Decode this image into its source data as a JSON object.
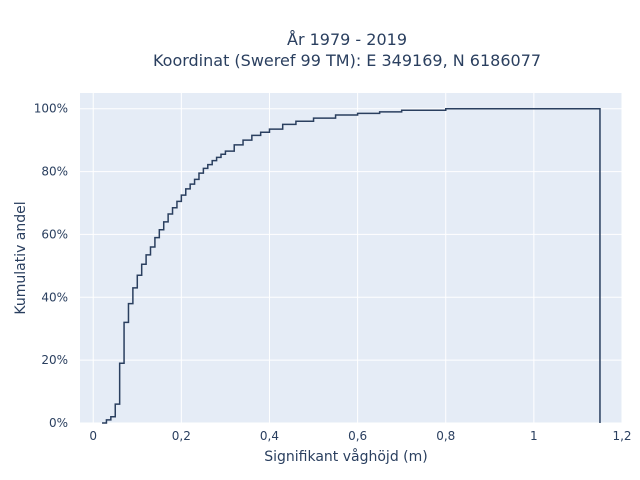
{
  "chart_data": {
    "type": "line",
    "step": true,
    "title_line1": "År 1979 - 2019",
    "title_line2": "Koordinat (Sweref 99 TM): E 349169, N 6186077",
    "xlabel": "Signifikant våghöjd (m)",
    "ylabel": "Kumulativ andel",
    "xlim": [
      -0.03,
      1.2
    ],
    "ylim": [
      0,
      1.05
    ],
    "x_ticks": [
      0,
      0.2,
      0.4,
      0.6,
      0.8,
      1.0,
      1.2
    ],
    "x_tick_labels": [
      "0",
      "0,2",
      "0,4",
      "0,6",
      "0,8",
      "1",
      "1,2"
    ],
    "y_ticks": [
      0,
      0.2,
      0.4,
      0.6,
      0.8,
      1.0
    ],
    "y_tick_labels": [
      "0%",
      "20%",
      "40%",
      "60%",
      "80%",
      "100%"
    ],
    "grid": true,
    "colors": {
      "plot_bg": "#e5ecf6",
      "grid": "#ffffff",
      "line": "#2a3f5f",
      "text": "#2a3f5f"
    },
    "series": [
      {
        "x": [
          0.02,
          0.03,
          0.04,
          0.05,
          0.06,
          0.07,
          0.08,
          0.09,
          0.1,
          0.11,
          0.12,
          0.13,
          0.14,
          0.15,
          0.16,
          0.17,
          0.18,
          0.19,
          0.2,
          0.21,
          0.22,
          0.23,
          0.24,
          0.25,
          0.26,
          0.27,
          0.28,
          0.29,
          0.3,
          0.32,
          0.34,
          0.36,
          0.38,
          0.4,
          0.43,
          0.46,
          0.5,
          0.55,
          0.6,
          0.65,
          0.7,
          0.8,
          1.15
        ],
        "y": [
          0.0,
          0.01,
          0.02,
          0.06,
          0.19,
          0.32,
          0.38,
          0.43,
          0.47,
          0.505,
          0.535,
          0.56,
          0.59,
          0.615,
          0.64,
          0.665,
          0.685,
          0.705,
          0.725,
          0.745,
          0.76,
          0.775,
          0.795,
          0.81,
          0.822,
          0.835,
          0.845,
          0.855,
          0.865,
          0.885,
          0.9,
          0.915,
          0.925,
          0.935,
          0.95,
          0.96,
          0.97,
          0.98,
          0.985,
          0.99,
          0.995,
          1.0,
          1.0
        ]
      }
    ]
  }
}
